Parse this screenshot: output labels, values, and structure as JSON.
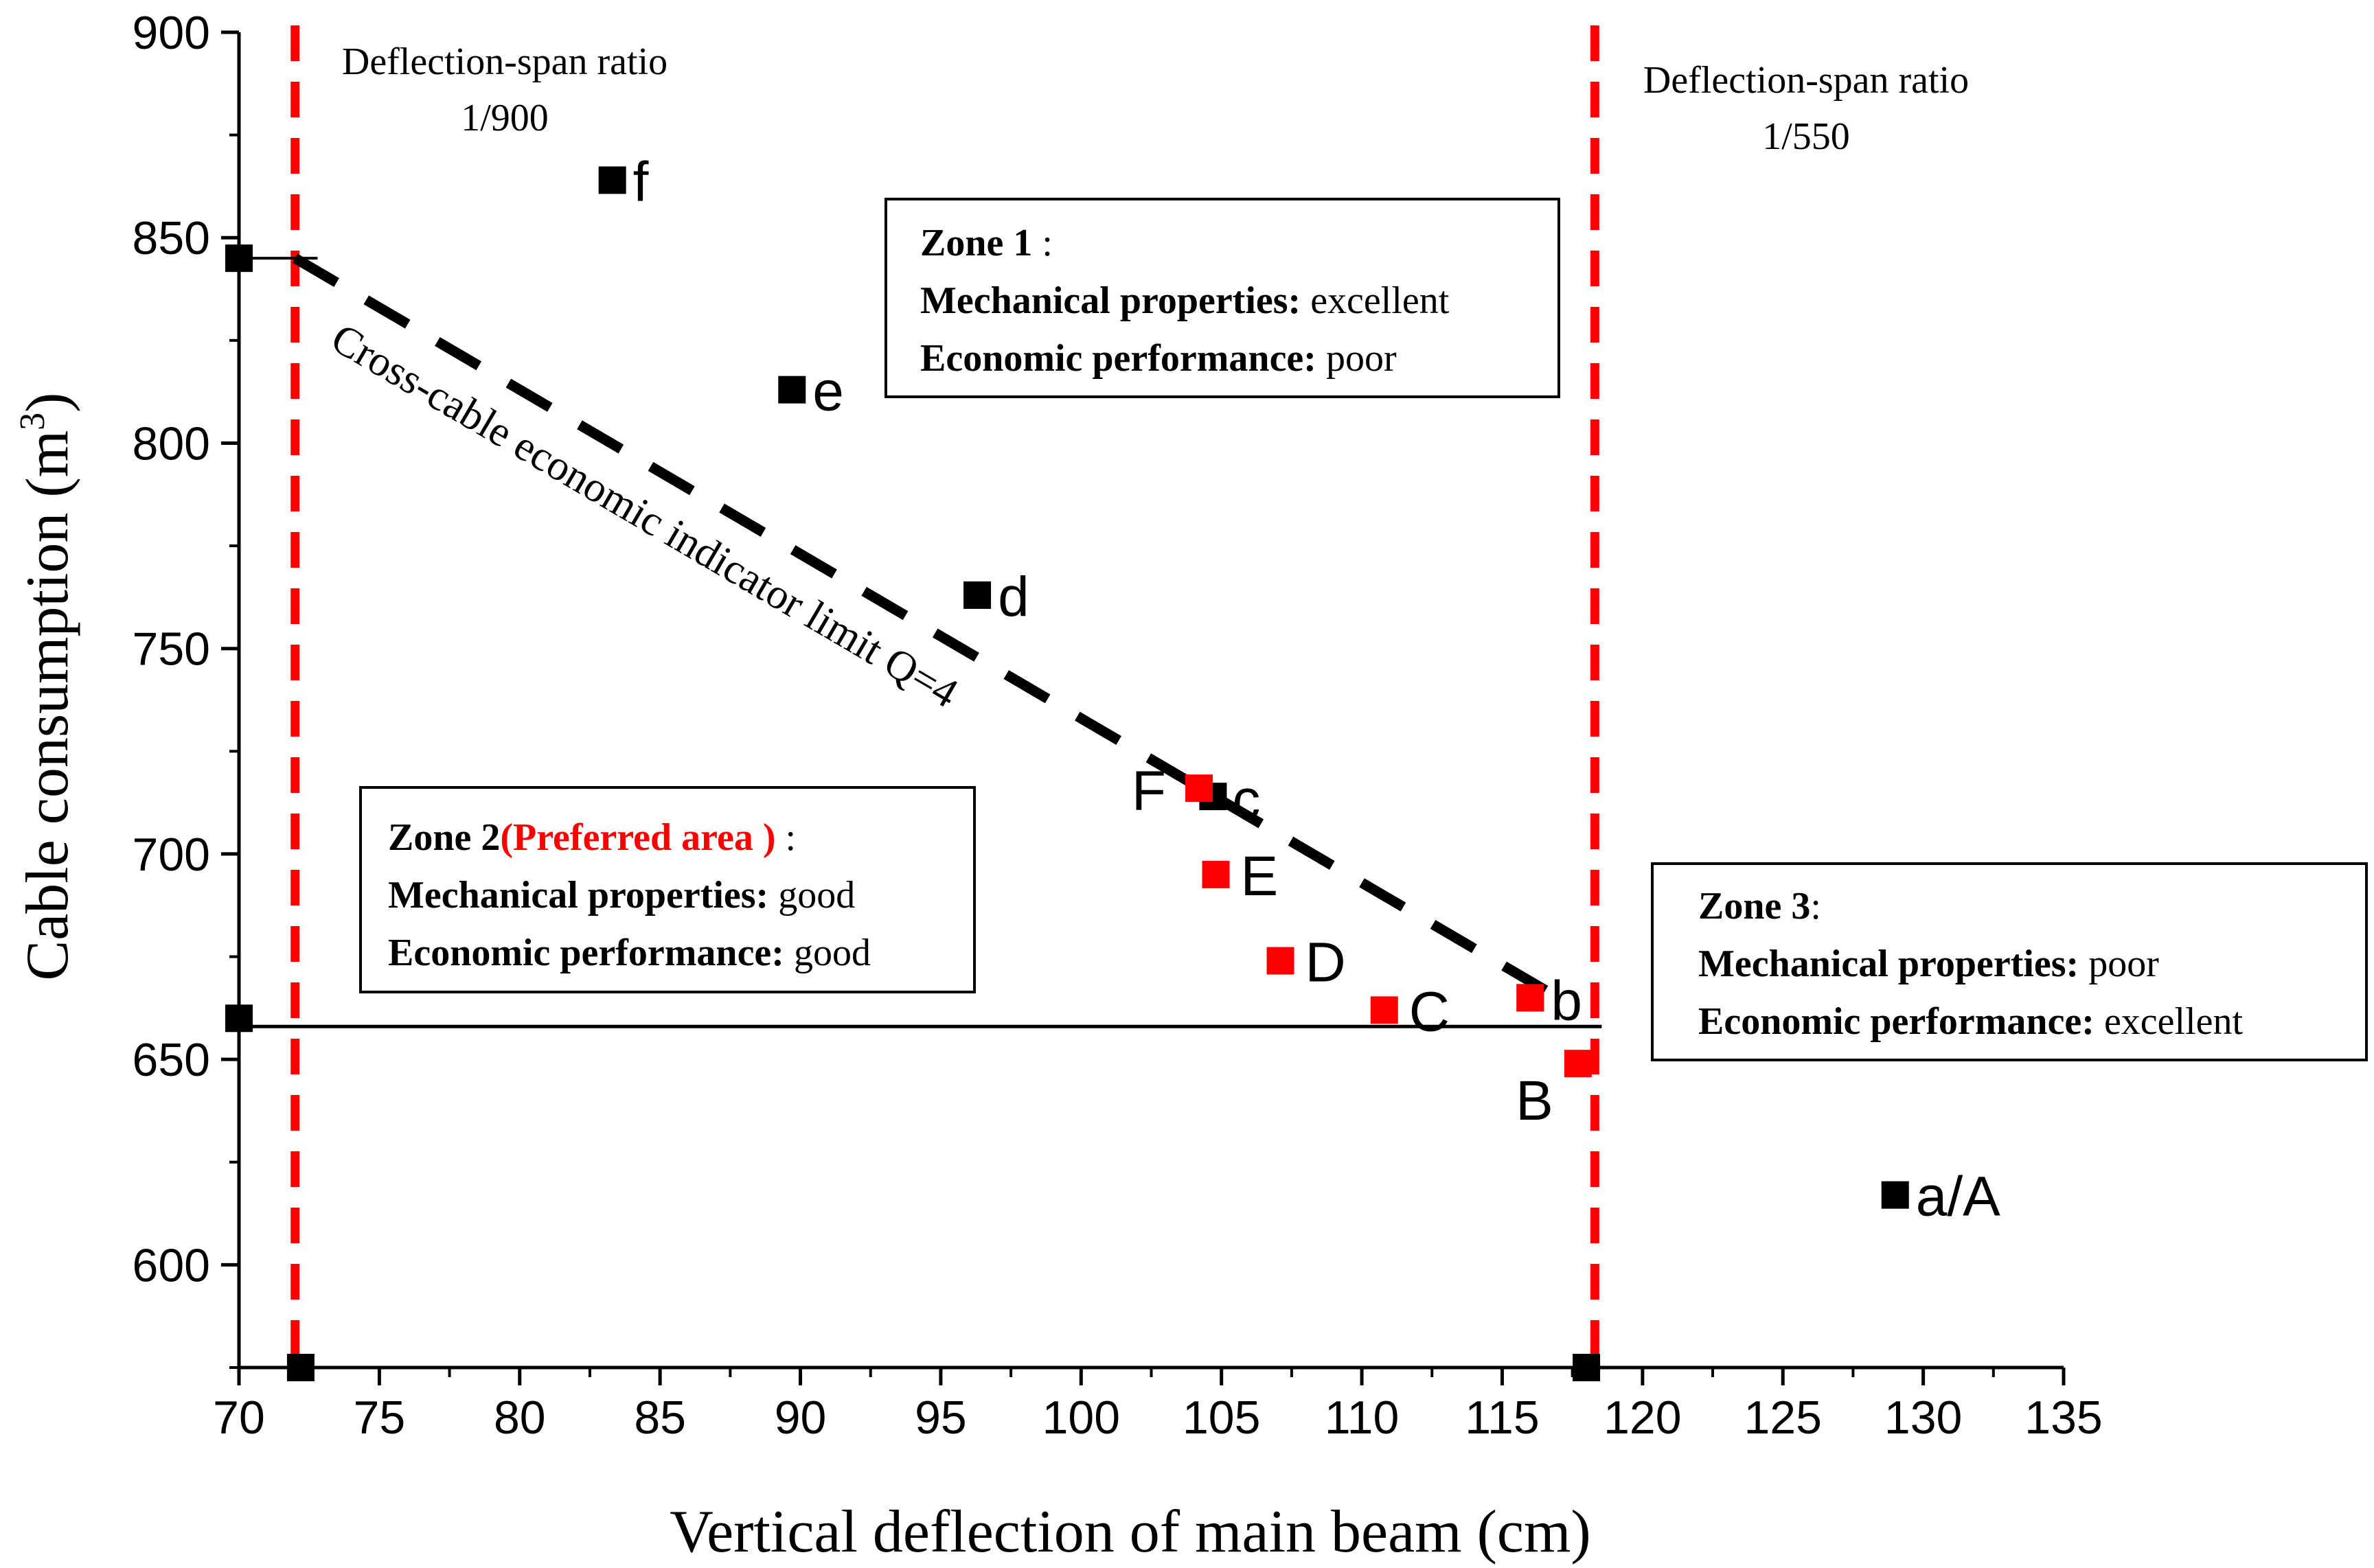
{
  "chart_data": {
    "type": "scatter",
    "xlabel": "Vertical deflection of main beam (cm)",
    "ylabel": "Cable consumption (m",
    "ylabel_sup": "3",
    "ylabel_close": ")",
    "xlim": [
      70,
      135
    ],
    "ylim": [
      575,
      900
    ],
    "x_ticks": [
      "70",
      "75",
      "80",
      "85",
      "90",
      "95",
      "100",
      "105",
      "110",
      "115",
      "120",
      "125",
      "130",
      "135"
    ],
    "y_ticks": [
      "600",
      "650",
      "700",
      "750",
      "800",
      "850",
      "900"
    ],
    "colors": {
      "black_series": "#000000",
      "red_series": "#ff0000",
      "reference_lines": "#ff0000"
    },
    "series": [
      {
        "color": "black",
        "points": [
          {
            "x": 83.3,
            "y": 864,
            "label": "f"
          },
          {
            "x": 89.7,
            "y": 813,
            "label": "e"
          },
          {
            "x": 96.3,
            "y": 763,
            "label": "d"
          },
          {
            "x": 104.7,
            "y": 714,
            "label": "c"
          },
          {
            "x": 116.0,
            "y": 665,
            "label": "b"
          },
          {
            "x": 129.0,
            "y": 617,
            "label": "a/A"
          }
        ]
      },
      {
        "color": "red",
        "points": [
          {
            "x": 104.2,
            "y": 716,
            "label": "F"
          },
          {
            "x": 104.8,
            "y": 695,
            "label": "E"
          },
          {
            "x": 107.1,
            "y": 674,
            "label": "D"
          },
          {
            "x": 110.8,
            "y": 662,
            "label": "C"
          },
          {
            "x": 116.0,
            "y": 665,
            "label": ""
          },
          {
            "x": 117.7,
            "y": 649,
            "label": "B"
          }
        ]
      }
    ],
    "reference_lines": [
      {
        "x": 72,
        "label_line1": "Deflection-span ratio",
        "label_line2": "1/900"
      },
      {
        "x": 118.3,
        "label_line1": "Deflection-span ratio",
        "label_line2": "1/550"
      }
    ],
    "limit_line": {
      "label": "Cross-cable economic indicator limit Q=4",
      "x": [
        72,
        117
      ],
      "y": [
        845,
        665
      ]
    },
    "horizontal_line": {
      "y": 658,
      "x": [
        70,
        118.3
      ]
    },
    "axis_markers": [
      {
        "x": 70,
        "y": 845
      },
      {
        "x": 70,
        "y": 660
      },
      {
        "x": 72.2,
        "y": 575
      },
      {
        "x": 118,
        "y": 575
      }
    ],
    "zones": [
      {
        "title": "Zone 1",
        "title_suffix": " :",
        "highlight": "",
        "highlight_suffix": "",
        "mech_label": "Mechanical properties:",
        "mech_value": " excellent",
        "econ_label": "Economic performance:",
        "econ_value": " poor"
      },
      {
        "title": "Zone 2",
        "title_suffix": "",
        "highlight": "(Preferred area )",
        "highlight_suffix": " :",
        "mech_label": "Mechanical properties:",
        "mech_value": " good",
        "econ_label": "Economic performance:",
        "econ_value": " good"
      },
      {
        "title": "Zone 3",
        "title_suffix": ":",
        "highlight": "",
        "highlight_suffix": "",
        "mech_label": "Mechanical properties:",
        "mech_value": " poor",
        "econ_label": "Economic performance:",
        "econ_value": " excellent"
      }
    ]
  }
}
